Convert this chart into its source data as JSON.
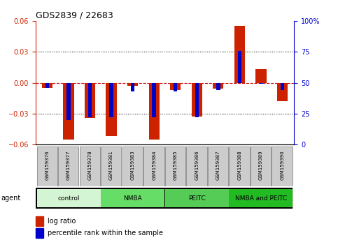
{
  "title": "GDS2839 / 22683",
  "samples": [
    "GSM159376",
    "GSM159377",
    "GSM159378",
    "GSM159381",
    "GSM159383",
    "GSM159384",
    "GSM159385",
    "GSM159386",
    "GSM159387",
    "GSM159388",
    "GSM159389",
    "GSM159390"
  ],
  "log_ratios": [
    -0.005,
    -0.055,
    -0.034,
    -0.052,
    -0.003,
    -0.055,
    -0.007,
    -0.033,
    -0.006,
    0.055,
    0.013,
    -0.018
  ],
  "percentile_ranks": [
    46,
    20,
    22,
    22,
    43,
    22,
    43,
    22,
    44,
    76,
    49,
    44
  ],
  "groups": [
    {
      "label": "control",
      "start": 0,
      "end": 3,
      "color": "#d4f5d4"
    },
    {
      "label": "NMBA",
      "start": 3,
      "end": 6,
      "color": "#66dd66"
    },
    {
      "label": "PEITC",
      "start": 6,
      "end": 9,
      "color": "#55cc55"
    },
    {
      "label": "NMBA and PEITC",
      "start": 9,
      "end": 12,
      "color": "#22bb22"
    }
  ],
  "ylim_left": [
    -0.06,
    0.06
  ],
  "ylim_right": [
    0,
    100
  ],
  "yticks_left": [
    -0.06,
    -0.03,
    0,
    0.03,
    0.06
  ],
  "yticks_right": [
    0,
    25,
    50,
    75,
    100
  ],
  "log_ratio_color": "#cc2200",
  "percentile_color": "#0000cc",
  "zero_line_color": "#cc0000",
  "tick_label_color_left": "#cc2200",
  "tick_label_color_right": "#0000cc",
  "sample_box_color": "#cccccc",
  "red_bar_width": 0.5,
  "blue_bar_width": 0.18
}
